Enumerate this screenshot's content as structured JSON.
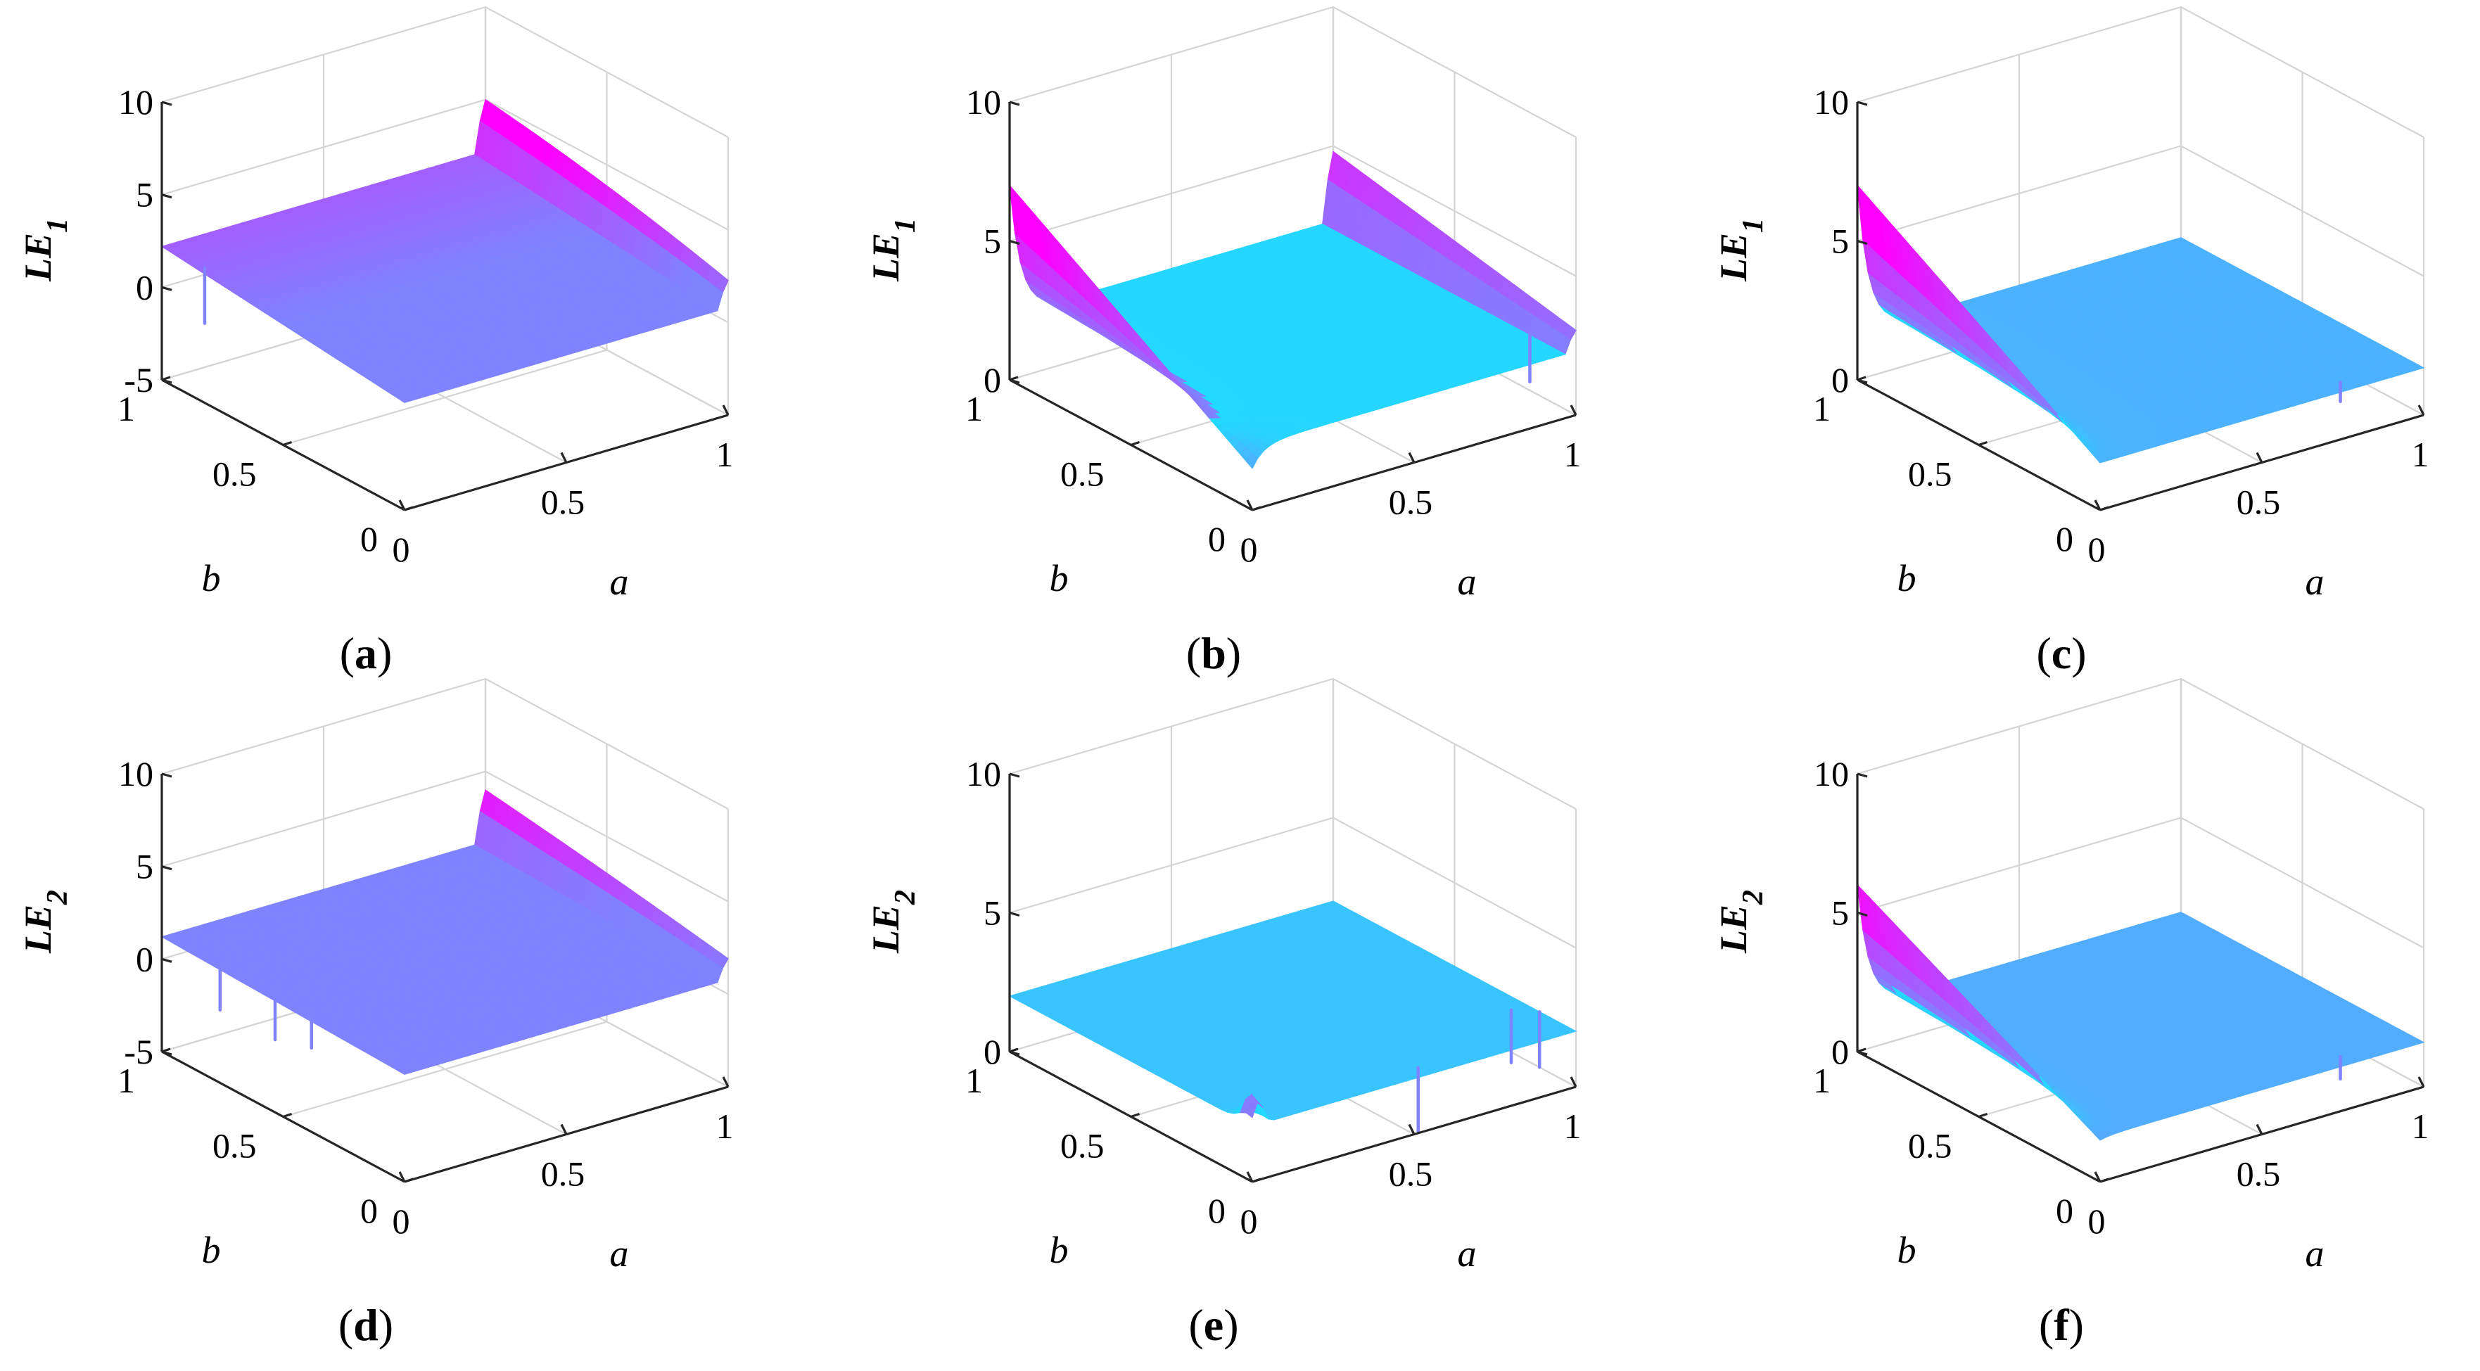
{
  "figure": {
    "colors": {
      "low": "#1fdcff",
      "mid": "#7f83ff",
      "high": "#ff00ff",
      "axis": "#262626",
      "grid": "#d4d4d4"
    }
  },
  "chart_data": [
    {
      "type": "surface3d",
      "caption_open": "(",
      "caption_letter": "a",
      "caption_close": ")",
      "zlabel_base": "LE",
      "zlabel_sub": "1",
      "xlabel": "a",
      "ylabel": "b",
      "xlim": [
        0,
        1
      ],
      "ylim": [
        0,
        1
      ],
      "zlim": [
        -5,
        10
      ],
      "xticks": [
        "0",
        "0.5",
        "1"
      ],
      "yticks": [
        "0",
        "0.5",
        "1"
      ],
      "zticks": [
        "-5",
        "0",
        "5",
        "10"
      ],
      "surface": {
        "z_low_a_b0": 0.8,
        "z_low_a_b1": 2.2,
        "z_high_a_b0": 0.8,
        "z_high_a_b1": 2.3,
        "ridge_start_a": 0.97,
        "ridge_peak": 5.0,
        "base_color": "mid"
      },
      "spikes": [
        {
          "a": 0.02,
          "b": 0.85,
          "z": -1.0
        }
      ]
    },
    {
      "type": "surface3d",
      "caption_open": "(",
      "caption_letter": "b",
      "caption_close": ")",
      "zlabel_base": "LE",
      "zlabel_sub": "1",
      "xlabel": "a",
      "ylabel": "b",
      "xlim": [
        0,
        1
      ],
      "ylim": [
        0,
        1
      ],
      "zlim": [
        0,
        10
      ],
      "xticks": [
        "0",
        "0.5",
        "1"
      ],
      "yticks": [
        "0",
        "0.5",
        "1"
      ],
      "zticks": [
        "0",
        "5",
        "10"
      ],
      "surface": {
        "z_a0_b1": 7.0,
        "z_a0_b0": 1.5,
        "z_plateau": 2.3,
        "z_a1_b1": 2.4,
        "ridge_a": 0.97,
        "ridge_peak": 4.8,
        "base_color": "low"
      },
      "spikes": [
        {
          "a": 0.97,
          "b": 0.15,
          "z": 0.6
        }
      ]
    },
    {
      "type": "surface3d",
      "caption_open": "(",
      "caption_letter": "c",
      "caption_close": ")",
      "zlabel_base": "LE",
      "zlabel_sub": "1",
      "xlabel": "a",
      "ylabel": "b",
      "xlim": [
        0,
        1
      ],
      "ylim": [
        0,
        1
      ],
      "zlim": [
        0,
        10
      ],
      "xticks": [
        "0",
        "0.5",
        "1"
      ],
      "yticks": [
        "0",
        "0.5",
        "1"
      ],
      "zticks": [
        "0",
        "5",
        "10"
      ],
      "surface": {
        "z_a0_b1": 7.0,
        "z_a0_b0": 1.7,
        "z_plateau": 1.7,
        "base_color": "low"
      },
      "spikes": [
        {
          "a": 0.78,
          "b": 0.05,
          "z": 1.0
        }
      ]
    },
    {
      "type": "surface3d",
      "caption_open": "(",
      "caption_letter": "d",
      "caption_close": ")",
      "zlabel_base": "LE",
      "zlabel_sub": "2",
      "xlabel": "a",
      "ylabel": "b",
      "xlim": [
        0,
        1
      ],
      "ylim": [
        0,
        1
      ],
      "zlim": [
        -5,
        10
      ],
      "xticks": [
        "0",
        "0.5",
        "1"
      ],
      "yticks": [
        "0",
        "0.5",
        "1"
      ],
      "zticks": [
        "-5",
        "0",
        "5",
        "10"
      ],
      "surface": {
        "z_low_a_b0": 0.8,
        "z_low_a_b1": 1.2,
        "z_high_a_b0": 0.8,
        "z_high_a_b1": 1.2,
        "ridge_start_a": 0.97,
        "ridge_peak": 4.0,
        "base_color": "mid"
      },
      "spikes": [
        {
          "a": 0.03,
          "b": 0.8,
          "z": -1.5
        },
        {
          "a": 0.05,
          "b": 0.6,
          "z": -1.8
        },
        {
          "a": 0.05,
          "b": 0.45,
          "z": -1.2
        }
      ]
    },
    {
      "type": "surface3d",
      "caption_open": "(",
      "caption_letter": "e",
      "caption_close": ")",
      "zlabel_base": "LE",
      "zlabel_sub": "2",
      "xlabel": "a",
      "ylabel": "b",
      "xlim": [
        0,
        1
      ],
      "ylim": [
        0,
        1
      ],
      "zlim": [
        0,
        10
      ],
      "xticks": [
        "0",
        "0.5",
        "1"
      ],
      "yticks": [
        "0",
        "0.5",
        "1"
      ],
      "zticks": [
        "0",
        "5",
        "10"
      ],
      "surface": {
        "z_plateau": 2.0,
        "bump_a": 0.02,
        "bump_b": 0.02,
        "bump_peak": 3.0,
        "base_color": "low"
      },
      "spikes": [
        {
          "a": 0.55,
          "b": 0.05,
          "z": -0.3
        },
        {
          "a": 0.95,
          "b": 0.2,
          "z": 0.1
        },
        {
          "a": 1.0,
          "b": 0.15,
          "z": 0.0
        }
      ]
    },
    {
      "type": "surface3d",
      "caption_open": "(",
      "caption_letter": "f",
      "caption_close": ")",
      "zlabel_base": "LE",
      "zlabel_sub": "2",
      "xlabel": "a",
      "ylabel": "b",
      "xlim": [
        0,
        1
      ],
      "ylim": [
        0,
        1
      ],
      "zlim": [
        0,
        10
      ],
      "xticks": [
        "0",
        "0.5",
        "1"
      ],
      "yticks": [
        "0",
        "0.5",
        "1"
      ],
      "zticks": [
        "0",
        "5",
        "10"
      ],
      "surface": {
        "z_a0_b1": 6.0,
        "z_a0_b0": 1.5,
        "z_plateau": 1.6,
        "base_color": "low"
      },
      "spikes": [
        {
          "a": 0.78,
          "b": 0.05,
          "z": 0.8
        }
      ]
    }
  ]
}
